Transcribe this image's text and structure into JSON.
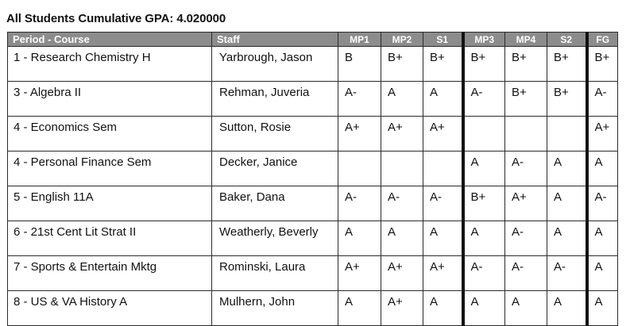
{
  "title": "All Students Cumulative GPA: 4.020000",
  "columns": {
    "course": "Period - Course",
    "staff": "Staff",
    "grades": [
      "MP1",
      "MP2",
      "S1",
      "MP3",
      "MP4",
      "S2",
      "FG"
    ]
  },
  "rows": [
    {
      "course": "1 - Research Chemistry H",
      "staff": "Yarbrough, Jason",
      "grades": [
        "B",
        "B+",
        "B+",
        "B+",
        "B+",
        "B+",
        "B+"
      ]
    },
    {
      "course": "3 - Algebra II",
      "staff": "Rehman, Juveria",
      "grades": [
        "A-",
        "A",
        "A",
        "A-",
        "B+",
        "B+",
        "A-"
      ]
    },
    {
      "course": "4 - Economics Sem",
      "staff": "Sutton, Rosie",
      "grades": [
        "A+",
        "A+",
        "A+",
        "",
        "",
        "",
        "A+"
      ]
    },
    {
      "course": "4 - Personal Finance Sem",
      "staff": "Decker, Janice",
      "grades": [
        "",
        "",
        "",
        "A",
        "A-",
        "A",
        "A"
      ]
    },
    {
      "course": "5 - English 11A",
      "staff": "Baker, Dana",
      "grades": [
        "A-",
        "A-",
        "A-",
        "B+",
        "A+",
        "A",
        "A-"
      ]
    },
    {
      "course": "6 - 21st Cent Lit Strat II",
      "staff": "Weatherly, Beverly",
      "grades": [
        "A",
        "A",
        "A",
        "A",
        "A-",
        "A",
        "A"
      ]
    },
    {
      "course": "7 - Sports & Entertain Mktg",
      "staff": "Rominski, Laura",
      "grades": [
        "A+",
        "A+",
        "A+",
        "A-",
        "A-",
        "A-",
        "A"
      ]
    },
    {
      "course": "8 - US & VA History A",
      "staff": "Mulhern, John",
      "grades": [
        "A",
        "A+",
        "A",
        "A",
        "A",
        "A",
        "A"
      ]
    }
  ]
}
